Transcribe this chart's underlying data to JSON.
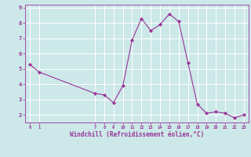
{
  "x": [
    0,
    1,
    7,
    8,
    9,
    10,
    11,
    12,
    13,
    14,
    15,
    16,
    17,
    18,
    19,
    20,
    21,
    22,
    23
  ],
  "y": [
    5.3,
    4.8,
    3.4,
    3.3,
    2.8,
    3.9,
    6.9,
    8.3,
    7.5,
    7.9,
    8.6,
    8.1,
    5.4,
    2.7,
    2.1,
    2.2,
    2.1,
    1.8,
    2.0
  ],
  "xlabel": "Windchill (Refroidissement éolien,°C)",
  "xlim": [
    -0.5,
    23.5
  ],
  "ylim": [
    1.5,
    9.2
  ],
  "yticks": [
    2,
    3,
    4,
    5,
    6,
    7,
    8,
    9
  ],
  "xticks": [
    0,
    1,
    7,
    8,
    9,
    10,
    11,
    12,
    13,
    14,
    15,
    16,
    17,
    18,
    19,
    20,
    21,
    22,
    23
  ],
  "line_color": "#993399",
  "marker_color": "#993399",
  "bg_color": "#cce8e8",
  "grid_color": "#b0d8d8",
  "xlabel_color": "#993399",
  "tick_color": "#993399"
}
